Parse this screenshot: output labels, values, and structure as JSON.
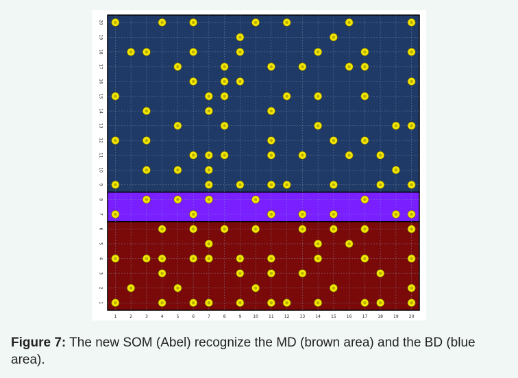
{
  "caption": {
    "label": "Figure 7:",
    "text": " The new SOM (Abel) recognize the MD (brown area) and the BD (blue area)."
  },
  "colors": {
    "page_background": "#f0f7f4",
    "bd_region": "#1f3a66",
    "band_region": "#7a1fff",
    "md_region": "#7a0a0a",
    "node_fill": "#f2e600",
    "grid_line": "#8fa0b8"
  },
  "chart_data": {
    "type": "scatter",
    "title": "",
    "xlabel": "",
    "ylabel": "",
    "xlim": [
      1,
      20
    ],
    "ylim": [
      1,
      20
    ],
    "x_ticks": [
      1,
      2,
      3,
      4,
      5,
      6,
      7,
      8,
      9,
      10,
      11,
      12,
      13,
      14,
      15,
      16,
      17,
      18,
      19,
      20
    ],
    "y_ticks": [
      1,
      2,
      3,
      4,
      5,
      6,
      7,
      8,
      9,
      10,
      11,
      12,
      13,
      14,
      15,
      16,
      17,
      18,
      19,
      20
    ],
    "grid": true,
    "regions": [
      {
        "name": "BD (blue area)",
        "y_from": 8.5,
        "y_to": 20.5,
        "color": "#1f3a66"
      },
      {
        "name": "band",
        "y_from": 6.5,
        "y_to": 8.5,
        "color": "#7a1fff"
      },
      {
        "name": "MD (brown area)",
        "y_from": 0.5,
        "y_to": 6.5,
        "color": "#7a0a0a"
      }
    ],
    "nodes": [
      {
        "x": 1,
        "y": 20
      },
      {
        "x": 4,
        "y": 20
      },
      {
        "x": 6,
        "y": 20
      },
      {
        "x": 10,
        "y": 20
      },
      {
        "x": 12,
        "y": 20
      },
      {
        "x": 16,
        "y": 20
      },
      {
        "x": 20,
        "y": 20
      },
      {
        "x": 9,
        "y": 19
      },
      {
        "x": 15,
        "y": 19
      },
      {
        "x": 2,
        "y": 18
      },
      {
        "x": 3,
        "y": 18
      },
      {
        "x": 6,
        "y": 18
      },
      {
        "x": 9,
        "y": 18
      },
      {
        "x": 14,
        "y": 18
      },
      {
        "x": 17,
        "y": 18
      },
      {
        "x": 20,
        "y": 18
      },
      {
        "x": 5,
        "y": 17
      },
      {
        "x": 8,
        "y": 17
      },
      {
        "x": 11,
        "y": 17
      },
      {
        "x": 13,
        "y": 17
      },
      {
        "x": 16,
        "y": 17
      },
      {
        "x": 17,
        "y": 17
      },
      {
        "x": 6,
        "y": 16
      },
      {
        "x": 8,
        "y": 16
      },
      {
        "x": 9,
        "y": 16
      },
      {
        "x": 20,
        "y": 16
      },
      {
        "x": 1,
        "y": 15
      },
      {
        "x": 7,
        "y": 15
      },
      {
        "x": 8,
        "y": 15
      },
      {
        "x": 12,
        "y": 15
      },
      {
        "x": 14,
        "y": 15
      },
      {
        "x": 17,
        "y": 15
      },
      {
        "x": 3,
        "y": 14
      },
      {
        "x": 7,
        "y": 14
      },
      {
        "x": 11,
        "y": 14
      },
      {
        "x": 5,
        "y": 13
      },
      {
        "x": 8,
        "y": 13
      },
      {
        "x": 14,
        "y": 13
      },
      {
        "x": 19,
        "y": 13
      },
      {
        "x": 20,
        "y": 13
      },
      {
        "x": 1,
        "y": 12
      },
      {
        "x": 3,
        "y": 12
      },
      {
        "x": 11,
        "y": 12
      },
      {
        "x": 15,
        "y": 12
      },
      {
        "x": 17,
        "y": 12
      },
      {
        "x": 6,
        "y": 11
      },
      {
        "x": 7,
        "y": 11
      },
      {
        "x": 8,
        "y": 11
      },
      {
        "x": 11,
        "y": 11
      },
      {
        "x": 13,
        "y": 11
      },
      {
        "x": 16,
        "y": 11
      },
      {
        "x": 18,
        "y": 11
      },
      {
        "x": 3,
        "y": 10
      },
      {
        "x": 5,
        "y": 10
      },
      {
        "x": 7,
        "y": 10
      },
      {
        "x": 19,
        "y": 10
      },
      {
        "x": 1,
        "y": 9
      },
      {
        "x": 7,
        "y": 9
      },
      {
        "x": 9,
        "y": 9
      },
      {
        "x": 11,
        "y": 9
      },
      {
        "x": 12,
        "y": 9
      },
      {
        "x": 15,
        "y": 9
      },
      {
        "x": 18,
        "y": 9
      },
      {
        "x": 20,
        "y": 9
      },
      {
        "x": 3,
        "y": 8
      },
      {
        "x": 5,
        "y": 8
      },
      {
        "x": 7,
        "y": 8
      },
      {
        "x": 10,
        "y": 8
      },
      {
        "x": 17,
        "y": 8
      },
      {
        "x": 1,
        "y": 7
      },
      {
        "x": 6,
        "y": 7
      },
      {
        "x": 11,
        "y": 7
      },
      {
        "x": 13,
        "y": 7
      },
      {
        "x": 15,
        "y": 7
      },
      {
        "x": 19,
        "y": 7
      },
      {
        "x": 20,
        "y": 7
      },
      {
        "x": 4,
        "y": 6
      },
      {
        "x": 6,
        "y": 6
      },
      {
        "x": 8,
        "y": 6
      },
      {
        "x": 10,
        "y": 6
      },
      {
        "x": 13,
        "y": 6
      },
      {
        "x": 15,
        "y": 6
      },
      {
        "x": 17,
        "y": 6
      },
      {
        "x": 20,
        "y": 6
      },
      {
        "x": 7,
        "y": 5
      },
      {
        "x": 14,
        "y": 5
      },
      {
        "x": 16,
        "y": 5
      },
      {
        "x": 1,
        "y": 4
      },
      {
        "x": 3,
        "y": 4
      },
      {
        "x": 4,
        "y": 4
      },
      {
        "x": 6,
        "y": 4
      },
      {
        "x": 7,
        "y": 4
      },
      {
        "x": 9,
        "y": 4
      },
      {
        "x": 11,
        "y": 4
      },
      {
        "x": 14,
        "y": 4
      },
      {
        "x": 17,
        "y": 4
      },
      {
        "x": 20,
        "y": 4
      },
      {
        "x": 4,
        "y": 3
      },
      {
        "x": 9,
        "y": 3
      },
      {
        "x": 11,
        "y": 3
      },
      {
        "x": 13,
        "y": 3
      },
      {
        "x": 18,
        "y": 3
      },
      {
        "x": 2,
        "y": 2
      },
      {
        "x": 5,
        "y": 2
      },
      {
        "x": 10,
        "y": 2
      },
      {
        "x": 15,
        "y": 2
      },
      {
        "x": 20,
        "y": 2
      },
      {
        "x": 1,
        "y": 1
      },
      {
        "x": 4,
        "y": 1
      },
      {
        "x": 6,
        "y": 1
      },
      {
        "x": 7,
        "y": 1
      },
      {
        "x": 9,
        "y": 1
      },
      {
        "x": 11,
        "y": 1
      },
      {
        "x": 12,
        "y": 1
      },
      {
        "x": 14,
        "y": 1
      },
      {
        "x": 17,
        "y": 1
      },
      {
        "x": 18,
        "y": 1
      },
      {
        "x": 20,
        "y": 1
      }
    ]
  }
}
